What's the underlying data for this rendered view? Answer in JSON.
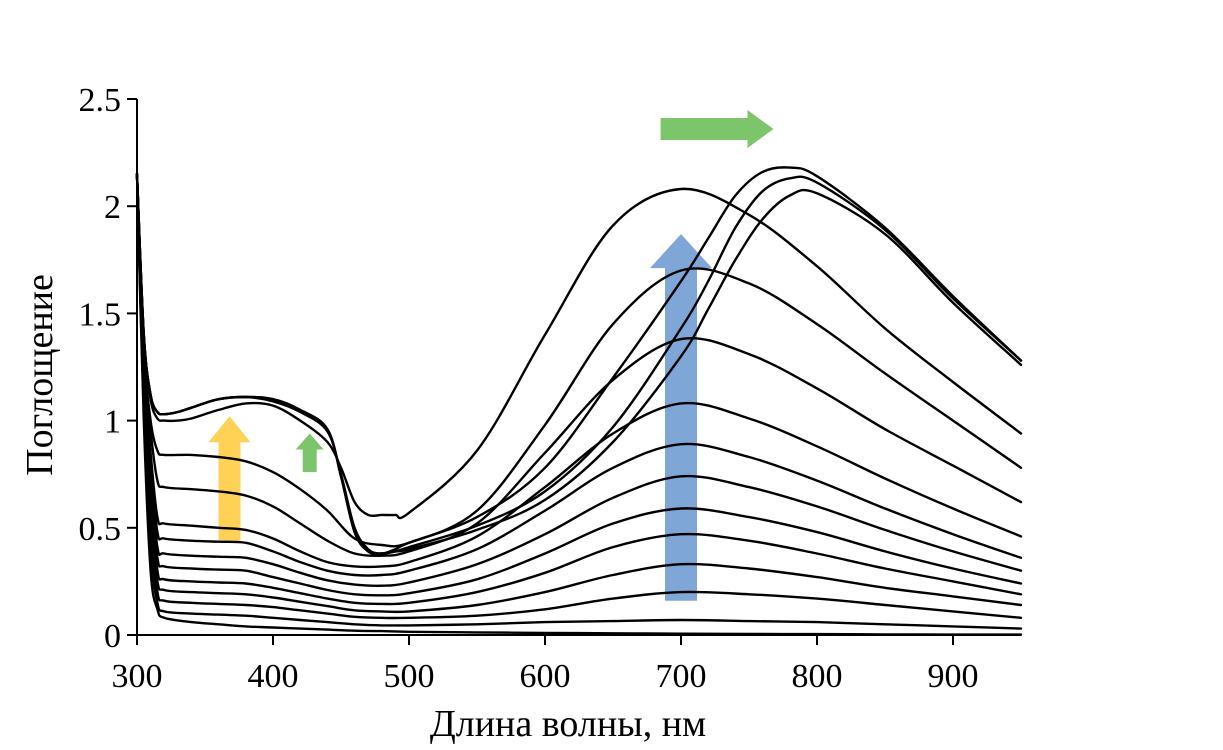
{
  "chart_data": {
    "type": "line",
    "title": "",
    "xlabel": "Длина волны, нм",
    "ylabel": "Поглощение",
    "xlim": [
      300,
      950
    ],
    "ylim": [
      0,
      2.5
    ],
    "xticks": [
      300,
      400,
      500,
      600,
      700,
      800,
      900
    ],
    "xtick_labels": [
      "300",
      "400",
      "500",
      "600",
      "700",
      "800",
      "900"
    ],
    "yticks": [
      0,
      0.5,
      1,
      1.5,
      2,
      2.5
    ],
    "ytick_labels": [
      "0",
      "0.5",
      "1",
      "1.5",
      "2",
      "2.5"
    ],
    "grid": false,
    "legend": "none",
    "series": [
      {
        "name": "s1",
        "x": [
          300,
          305,
          310,
          315,
          320,
          340,
          360,
          380,
          400,
          420,
          440,
          460,
          480,
          500,
          550,
          600,
          650,
          700,
          750,
          800,
          850,
          900,
          950
        ],
        "y": [
          2.15,
          1.0,
          0.3,
          0.12,
          0.08,
          0.06,
          0.05,
          0.04,
          0.035,
          0.03,
          0.025,
          0.02,
          0.018,
          0.015,
          0.012,
          0.01,
          0.008,
          0.006,
          0.005,
          0.004,
          0.003,
          0.002,
          0.002
        ]
      },
      {
        "name": "s2",
        "x": [
          300,
          305,
          310,
          315,
          320,
          340,
          360,
          380,
          400,
          420,
          440,
          460,
          480,
          500,
          550,
          600,
          650,
          700,
          750,
          800,
          850,
          900,
          950
        ],
        "y": [
          2.15,
          1.05,
          0.4,
          0.15,
          0.11,
          0.1,
          0.095,
          0.09,
          0.08,
          0.07,
          0.06,
          0.05,
          0.045,
          0.045,
          0.05,
          0.06,
          0.065,
          0.07,
          0.065,
          0.06,
          0.05,
          0.04,
          0.03
        ]
      },
      {
        "name": "s3",
        "x": [
          300,
          305,
          310,
          315,
          320,
          340,
          360,
          380,
          400,
          420,
          440,
          460,
          480,
          500,
          550,
          600,
          650,
          700,
          750,
          800,
          850,
          900,
          950
        ],
        "y": [
          2.15,
          1.1,
          0.5,
          0.2,
          0.16,
          0.15,
          0.145,
          0.14,
          0.13,
          0.115,
          0.1,
          0.085,
          0.08,
          0.08,
          0.09,
          0.12,
          0.17,
          0.2,
          0.19,
          0.17,
          0.14,
          0.11,
          0.08
        ]
      },
      {
        "name": "s4",
        "x": [
          300,
          305,
          310,
          315,
          320,
          340,
          360,
          380,
          400,
          420,
          440,
          460,
          480,
          500,
          550,
          600,
          650,
          700,
          750,
          800,
          850,
          900,
          950
        ],
        "y": [
          2.15,
          1.12,
          0.55,
          0.25,
          0.21,
          0.2,
          0.195,
          0.19,
          0.175,
          0.155,
          0.135,
          0.115,
          0.11,
          0.11,
          0.14,
          0.2,
          0.28,
          0.33,
          0.31,
          0.27,
          0.22,
          0.18,
          0.14
        ]
      },
      {
        "name": "s5",
        "x": [
          300,
          305,
          310,
          315,
          320,
          340,
          360,
          380,
          400,
          420,
          440,
          460,
          480,
          500,
          550,
          600,
          650,
          700,
          750,
          800,
          850,
          900,
          950
        ],
        "y": [
          2.15,
          1.15,
          0.65,
          0.3,
          0.26,
          0.25,
          0.245,
          0.24,
          0.22,
          0.195,
          0.17,
          0.15,
          0.145,
          0.15,
          0.2,
          0.29,
          0.41,
          0.47,
          0.44,
          0.38,
          0.31,
          0.25,
          0.19
        ]
      },
      {
        "name": "s6",
        "x": [
          300,
          305,
          310,
          315,
          320,
          340,
          360,
          380,
          400,
          420,
          440,
          460,
          480,
          500,
          550,
          600,
          650,
          700,
          750,
          800,
          850,
          900,
          950
        ],
        "y": [
          2.15,
          1.17,
          0.7,
          0.36,
          0.32,
          0.31,
          0.305,
          0.3,
          0.27,
          0.24,
          0.21,
          0.19,
          0.185,
          0.195,
          0.26,
          0.38,
          0.52,
          0.59,
          0.55,
          0.48,
          0.39,
          0.31,
          0.24
        ]
      },
      {
        "name": "s7",
        "x": [
          300,
          305,
          310,
          315,
          320,
          340,
          360,
          380,
          400,
          420,
          440,
          460,
          480,
          500,
          550,
          600,
          650,
          700,
          750,
          800,
          850,
          900,
          950
        ],
        "y": [
          2.15,
          1.2,
          0.75,
          0.41,
          0.38,
          0.37,
          0.365,
          0.36,
          0.33,
          0.29,
          0.255,
          0.235,
          0.23,
          0.245,
          0.33,
          0.47,
          0.64,
          0.74,
          0.69,
          0.6,
          0.49,
          0.39,
          0.3
        ]
      },
      {
        "name": "s8",
        "x": [
          300,
          305,
          310,
          315,
          320,
          340,
          360,
          380,
          400,
          420,
          440,
          460,
          480,
          500,
          550,
          600,
          650,
          700,
          750,
          800,
          850,
          900,
          950
        ],
        "y": [
          2.15,
          1.22,
          0.8,
          0.48,
          0.45,
          0.44,
          0.435,
          0.43,
          0.39,
          0.34,
          0.3,
          0.28,
          0.28,
          0.3,
          0.4,
          0.58,
          0.78,
          0.89,
          0.83,
          0.72,
          0.59,
          0.47,
          0.36
        ]
      },
      {
        "name": "s9",
        "x": [
          300,
          305,
          310,
          315,
          320,
          340,
          360,
          380,
          400,
          420,
          440,
          460,
          480,
          500,
          550,
          600,
          650,
          700,
          750,
          800,
          850,
          900,
          950
        ],
        "y": [
          2.15,
          1.25,
          0.85,
          0.55,
          0.52,
          0.51,
          0.5,
          0.49,
          0.45,
          0.39,
          0.34,
          0.32,
          0.32,
          0.34,
          0.46,
          0.69,
          0.94,
          1.08,
          1.01,
          0.88,
          0.73,
          0.59,
          0.46
        ]
      },
      {
        "name": "s10",
        "x": [
          300,
          305,
          310,
          315,
          320,
          340,
          360,
          380,
          400,
          420,
          440,
          460,
          480,
          500,
          550,
          600,
          650,
          700,
          750,
          800,
          850,
          900,
          950
        ],
        "y": [
          2.15,
          1.3,
          0.95,
          0.72,
          0.69,
          0.68,
          0.67,
          0.65,
          0.6,
          0.52,
          0.44,
          0.38,
          0.37,
          0.39,
          0.52,
          0.85,
          1.19,
          1.38,
          1.31,
          1.15,
          0.96,
          0.79,
          0.62
        ]
      },
      {
        "name": "s11",
        "x": [
          300,
          305,
          310,
          315,
          320,
          340,
          360,
          380,
          400,
          420,
          440,
          460,
          480,
          500,
          550,
          600,
          650,
          700,
          750,
          800,
          850,
          900,
          950
        ],
        "y": [
          2.15,
          1.35,
          1.0,
          0.86,
          0.84,
          0.84,
          0.83,
          0.81,
          0.76,
          0.68,
          0.58,
          0.45,
          0.42,
          0.43,
          0.58,
          0.98,
          1.45,
          1.7,
          1.64,
          1.45,
          1.22,
          1.0,
          0.78
        ]
      },
      {
        "name": "s12",
        "x": [
          300,
          305,
          310,
          315,
          320,
          330,
          340,
          360,
          380,
          400,
          420,
          440,
          450,
          460,
          470,
          480,
          490,
          500,
          550,
          600,
          650,
          700,
          750,
          800,
          850,
          900,
          950
        ],
        "y": [
          2.15,
          1.4,
          1.1,
          1.01,
          1.0,
          1.0,
          1.01,
          1.05,
          1.08,
          1.07,
          1.0,
          0.9,
          0.78,
          0.62,
          0.56,
          0.56,
          0.56,
          0.57,
          0.86,
          1.4,
          1.91,
          2.08,
          1.96,
          1.72,
          1.43,
          1.18,
          0.94
        ]
      },
      {
        "name": "s13",
        "x": [
          300,
          305,
          310,
          315,
          320,
          330,
          340,
          360,
          380,
          400,
          420,
          440,
          450,
          460,
          470,
          480,
          490,
          500,
          550,
          600,
          650,
          700,
          720,
          740,
          760,
          780,
          800,
          850,
          900,
          950
        ],
        "y": [
          2.15,
          1.4,
          1.12,
          1.04,
          1.03,
          1.04,
          1.06,
          1.1,
          1.11,
          1.09,
          1.04,
          0.95,
          0.75,
          0.5,
          0.4,
          0.38,
          0.4,
          0.43,
          0.55,
          0.78,
          1.2,
          1.65,
          1.85,
          2.05,
          2.16,
          2.18,
          2.14,
          1.9,
          1.58,
          1.28
        ]
      },
      {
        "name": "s14",
        "x": [
          300,
          305,
          310,
          315,
          320,
          330,
          340,
          360,
          380,
          400,
          420,
          440,
          450,
          460,
          470,
          480,
          490,
          500,
          550,
          600,
          650,
          700,
          720,
          740,
          760,
          780,
          800,
          850,
          900,
          950
        ],
        "y": [
          2.15,
          1.4,
          1.12,
          1.04,
          1.03,
          1.04,
          1.06,
          1.1,
          1.11,
          1.1,
          1.05,
          0.96,
          0.74,
          0.48,
          0.39,
          0.38,
          0.39,
          0.41,
          0.51,
          0.67,
          0.97,
          1.43,
          1.65,
          1.9,
          2.07,
          2.13,
          2.11,
          1.89,
          1.57,
          1.28
        ]
      },
      {
        "name": "s15",
        "x": [
          300,
          305,
          310,
          315,
          320,
          330,
          340,
          360,
          380,
          400,
          420,
          440,
          450,
          460,
          470,
          480,
          490,
          500,
          550,
          600,
          650,
          700,
          720,
          740,
          760,
          780,
          800,
          850,
          900,
          950
        ],
        "y": [
          2.15,
          1.4,
          1.12,
          1.04,
          1.03,
          1.04,
          1.06,
          1.1,
          1.11,
          1.1,
          1.05,
          0.96,
          0.74,
          0.48,
          0.39,
          0.38,
          0.39,
          0.4,
          0.49,
          0.63,
          0.9,
          1.3,
          1.52,
          1.75,
          1.94,
          2.05,
          2.06,
          1.87,
          1.55,
          1.26
        ]
      }
    ],
    "annotations": [
      {
        "name": "arrow-yellow-up",
        "color": "#FFD154",
        "direction": "up",
        "from": [
          368,
          0.44
        ],
        "to": [
          368,
          1.02
        ]
      },
      {
        "name": "arrow-green-up",
        "color": "#7CC56B",
        "direction": "up",
        "from": [
          427,
          0.76
        ],
        "to": [
          427,
          0.94
        ]
      },
      {
        "name": "arrow-blue-up",
        "color": "#7EA6D6",
        "direction": "up",
        "from": [
          700,
          0.16
        ],
        "to": [
          700,
          1.87
        ]
      },
      {
        "name": "arrow-green-right",
        "color": "#7CC56B",
        "direction": "right",
        "from": [
          685,
          2.36
        ],
        "to": [
          768,
          2.36
        ]
      }
    ]
  },
  "colors": {
    "line": "#000000",
    "axis": "#000000",
    "background": "#ffffff"
  }
}
